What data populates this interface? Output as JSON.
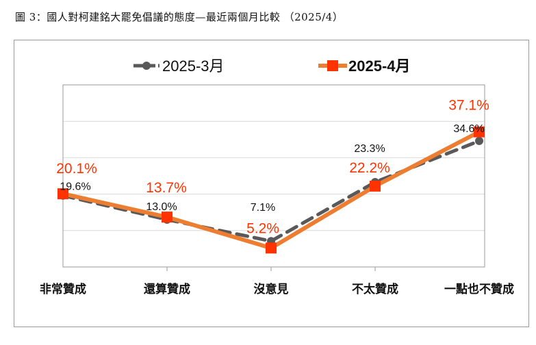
{
  "title": "圖 3：國人對柯建銘大罷免倡議的態度—最近兩個月比較 （2025/4）",
  "chart_data": {
    "type": "line",
    "title": "",
    "xlabel": "",
    "ylabel": "",
    "ylim": [
      0,
      50
    ],
    "grid": true,
    "legend_placement": "top",
    "categories": [
      "非常贊成",
      "還算贊成",
      "沒意見",
      "不太贊成",
      "一點也不贊成"
    ],
    "series": [
      {
        "name": "2025-3月",
        "values": [
          19.6,
          13.0,
          7.1,
          23.3,
          34.6
        ],
        "labels": [
          "19.6%",
          "13.0%",
          "7.1%",
          "23.3%",
          "34.6%"
        ],
        "color": "#595959",
        "label_color": "#111111",
        "style": "dashed",
        "marker": "circle"
      },
      {
        "name": "2025-4月",
        "values": [
          20.1,
          13.7,
          5.2,
          22.2,
          37.1
        ],
        "labels": [
          "20.1%",
          "13.7%",
          "5.2%",
          "22.2%",
          "37.1%"
        ],
        "color": "#ED7D31",
        "label_color": "#FF3300",
        "marker_color": "#FF3300",
        "style": "solid",
        "marker": "square"
      }
    ]
  }
}
